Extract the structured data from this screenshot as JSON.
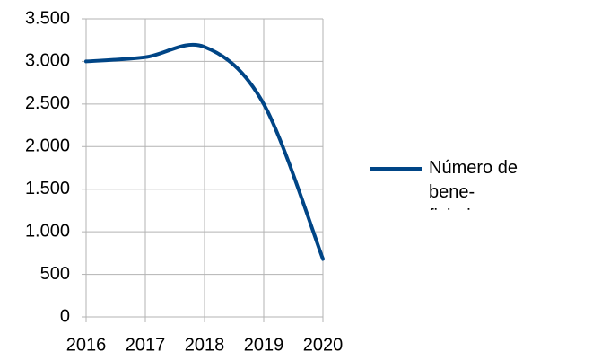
{
  "chart_data": {
    "type": "line",
    "categories": [
      "2016",
      "2017",
      "2018",
      "2019",
      "2020"
    ],
    "series": [
      {
        "name": "Número de bene­ficiarios",
        "color": "#004586",
        "values": [
          3000,
          3050,
          3170,
          2500,
          680
        ]
      }
    ],
    "ylim": [
      0,
      3500
    ],
    "yticks": [
      0,
      500,
      {
        "value": 1000,
        "label": "1.000"
      },
      {
        "value": 1500,
        "label": "1.500"
      },
      {
        "value": 2000,
        "label": "2.000"
      },
      {
        "value": 2500,
        "label": "2.500"
      },
      {
        "value": 3000,
        "label": "3.000"
      },
      {
        "value": 3500,
        "label": "3.500"
      }
    ],
    "grid": true,
    "smooth": true,
    "legend": "right"
  }
}
